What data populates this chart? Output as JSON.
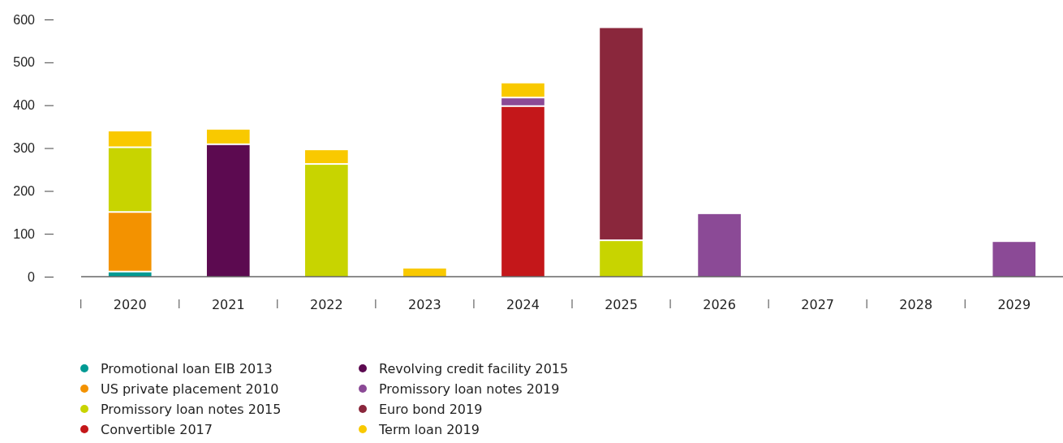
{
  "chart_data": {
    "type": "bar",
    "stacked": true,
    "categories": [
      "2020",
      "2021",
      "2022",
      "2023",
      "2024",
      "2025",
      "2026",
      "2027",
      "2028",
      "2029"
    ],
    "ylim": [
      0,
      600
    ],
    "yticks": [
      0,
      100,
      200,
      300,
      400,
      500,
      600
    ],
    "grid": false,
    "legend": "bottom",
    "series": [
      {
        "name": "Promotional loan EIB 2013",
        "color": "#009a93",
        "values": [
          10,
          null,
          null,
          null,
          null,
          null,
          null,
          null,
          null,
          null
        ]
      },
      {
        "name": "US private placement 2010",
        "color": "#f39200",
        "values": [
          139,
          null,
          null,
          null,
          null,
          null,
          null,
          null,
          null,
          null
        ]
      },
      {
        "name": "Promissory loan notes 2015",
        "color": "#c8d400",
        "values": [
          151,
          null,
          261,
          null,
          null,
          83,
          null,
          null,
          null,
          null
        ]
      },
      {
        "name": "Convertible 2017",
        "color": "#c4171a",
        "values": [
          null,
          null,
          null,
          null,
          396,
          null,
          null,
          null,
          null,
          null
        ]
      },
      {
        "name": "Revolving credit facility 2015",
        "color": "#5c0a50",
        "values": [
          null,
          307,
          null,
          null,
          null,
          null,
          null,
          null,
          null,
          null
        ]
      },
      {
        "name": "Promissory loan notes 2019",
        "color": "#8b4a96",
        "values": [
          null,
          null,
          null,
          null,
          20,
          null,
          146,
          null,
          null,
          81
        ]
      },
      {
        "name": "Euro bond 2019",
        "color": "#8a273c",
        "values": [
          null,
          null,
          null,
          null,
          null,
          497,
          null,
          null,
          null,
          null
        ]
      },
      {
        "name": "Term loan 2019",
        "color": "#f9c900",
        "values": [
          39,
          36,
          34,
          19,
          35,
          null,
          null,
          null,
          null,
          null
        ]
      }
    ]
  }
}
